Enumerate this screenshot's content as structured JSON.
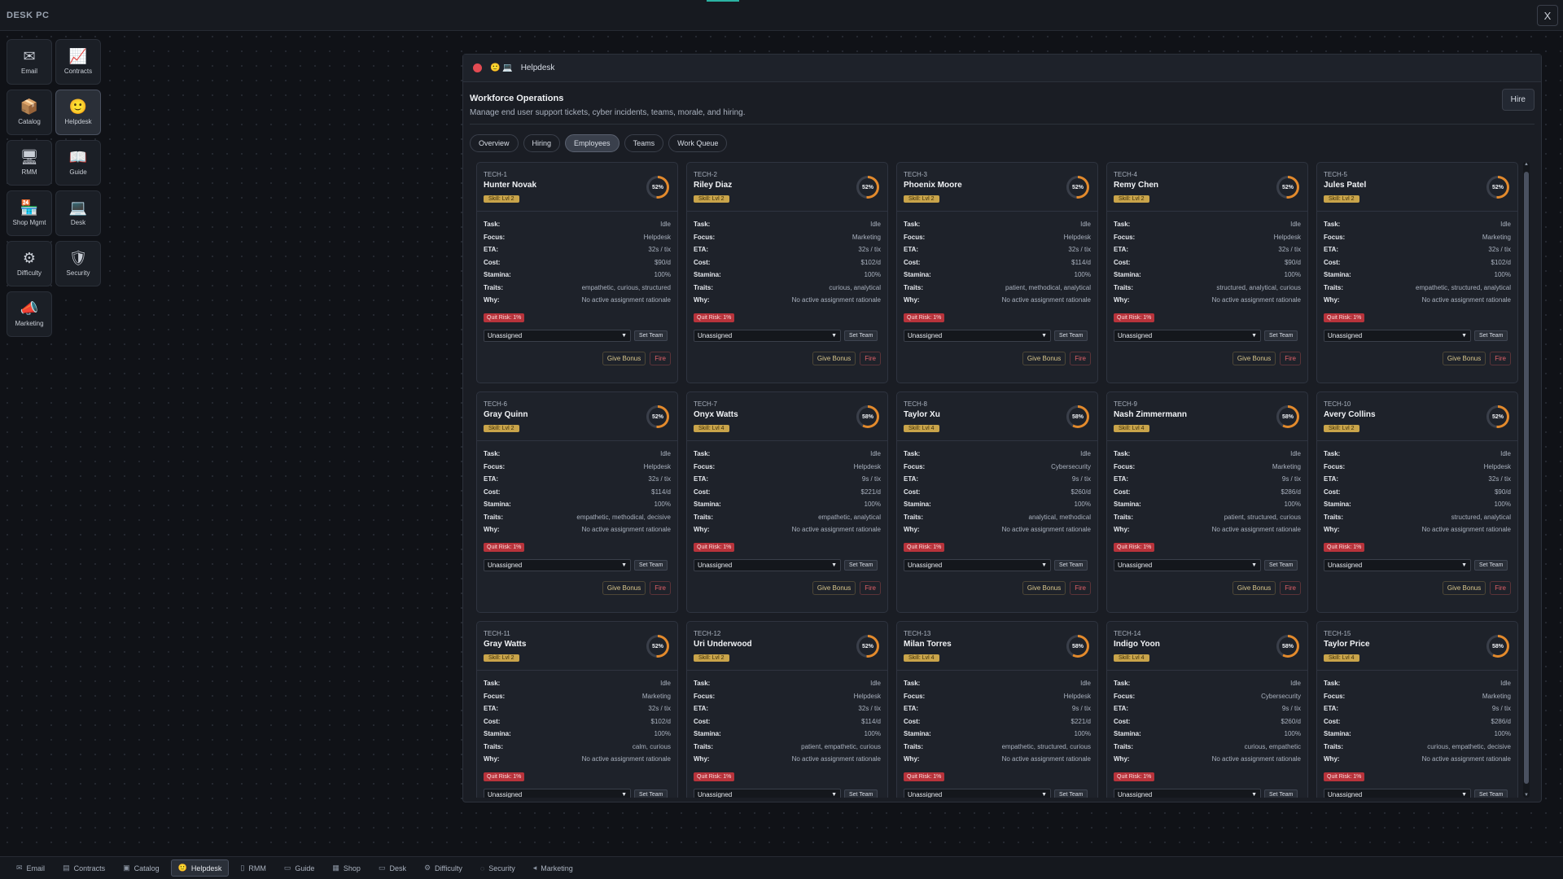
{
  "os": {
    "title": "DESK PC",
    "close_glyph": "X"
  },
  "desktop_icons": [
    {
      "label": "Email",
      "icon": "email-icon",
      "glyph": "✉",
      "active": false
    },
    {
      "label": "Contracts",
      "icon": "contracts-icon",
      "glyph": "📈",
      "active": false
    },
    {
      "label": "Catalog",
      "icon": "catalog-icon",
      "glyph": "📦",
      "active": false
    },
    {
      "label": "Helpdesk",
      "icon": "helpdesk-icon",
      "glyph": "🙂",
      "active": true
    },
    {
      "label": "RMM",
      "icon": "rmm-icon",
      "glyph": "🖥",
      "active": false
    },
    {
      "label": "Guide",
      "icon": "guide-icon",
      "glyph": "📖",
      "active": false
    },
    {
      "label": "Shop Mgmt",
      "icon": "shop-icon",
      "glyph": "🏪",
      "active": false
    },
    {
      "label": "Desk",
      "icon": "desk-icon",
      "glyph": "💻",
      "active": false
    },
    {
      "label": "Difficulty",
      "icon": "gear-icon",
      "glyph": "⚙",
      "active": false
    },
    {
      "label": "Security",
      "icon": "shield-icon",
      "glyph": "🛡",
      "active": false
    },
    {
      "label": "Marketing",
      "icon": "megaphone-icon",
      "glyph": "📣",
      "active": false
    }
  ],
  "window": {
    "title": "Helpdesk",
    "title_icons": "🙂 💻",
    "heading": "Workforce Operations",
    "subheading": "Manage end user support tickets, cyber incidents, teams, morale, and hiring.",
    "hire_label": "Hire",
    "tabs": [
      "Overview",
      "Hiring",
      "Employees",
      "Teams",
      "Work Queue"
    ],
    "active_tab": "Employees"
  },
  "labels": {
    "task": "Task:",
    "focus": "Focus:",
    "eta": "ETA:",
    "cost": "Cost:",
    "stamina": "Stamina:",
    "traits": "Traits:",
    "why": "Why:",
    "set_team": "Set Team",
    "give_bonus": "Give Bonus",
    "fire": "Fire",
    "unassigned": "Unassigned"
  },
  "employees": [
    {
      "id": "TECH-1",
      "name": "Hunter Novak",
      "skill": "Skill: Lvl 2",
      "morale": "52%",
      "task": "Idle",
      "focus": "Helpdesk",
      "eta": "32s / tix",
      "cost": "$90/d",
      "stamina": "100%",
      "traits": "empathetic, curious, structured",
      "why": "No active assignment rationale",
      "quit": "Quit Risk: 1%"
    },
    {
      "id": "TECH-2",
      "name": "Riley Diaz",
      "skill": "Skill: Lvl 2",
      "morale": "52%",
      "task": "Idle",
      "focus": "Marketing",
      "eta": "32s / tix",
      "cost": "$102/d",
      "stamina": "100%",
      "traits": "curious, analytical",
      "why": "No active assignment rationale",
      "quit": "Quit Risk: 1%"
    },
    {
      "id": "TECH-3",
      "name": "Phoenix Moore",
      "skill": "Skill: Lvl 2",
      "morale": "52%",
      "task": "Idle",
      "focus": "Helpdesk",
      "eta": "32s / tix",
      "cost": "$114/d",
      "stamina": "100%",
      "traits": "patient, methodical, analytical",
      "why": "No active assignment rationale",
      "quit": "Quit Risk: 1%"
    },
    {
      "id": "TECH-4",
      "name": "Remy Chen",
      "skill": "Skill: Lvl 2",
      "morale": "52%",
      "task": "Idle",
      "focus": "Helpdesk",
      "eta": "32s / tix",
      "cost": "$90/d",
      "stamina": "100%",
      "traits": "structured, analytical, curious",
      "why": "No active assignment rationale",
      "quit": "Quit Risk: 1%"
    },
    {
      "id": "TECH-5",
      "name": "Jules Patel",
      "skill": "Skill: Lvl 2",
      "morale": "52%",
      "task": "Idle",
      "focus": "Marketing",
      "eta": "32s / tix",
      "cost": "$102/d",
      "stamina": "100%",
      "traits": "empathetic, structured, analytical",
      "why": "No active assignment rationale",
      "quit": "Quit Risk: 1%"
    },
    {
      "id": "TECH-6",
      "name": "Gray Quinn",
      "skill": "Skill: Lvl 2",
      "morale": "52%",
      "task": "Idle",
      "focus": "Helpdesk",
      "eta": "32s / tix",
      "cost": "$114/d",
      "stamina": "100%",
      "traits": "empathetic, methodical, decisive",
      "why": "No active assignment rationale",
      "quit": "Quit Risk: 1%"
    },
    {
      "id": "TECH-7",
      "name": "Onyx Watts",
      "skill": "Skill: Lvl 4",
      "morale": "58%",
      "task": "Idle",
      "focus": "Helpdesk",
      "eta": "9s / tix",
      "cost": "$221/d",
      "stamina": "100%",
      "traits": "empathetic, analytical",
      "why": "No active assignment rationale",
      "quit": "Quit Risk: 1%"
    },
    {
      "id": "TECH-8",
      "name": "Taylor Xu",
      "skill": "Skill: Lvl 4",
      "morale": "58%",
      "task": "Idle",
      "focus": "Cybersecurity",
      "eta": "9s / tix",
      "cost": "$260/d",
      "stamina": "100%",
      "traits": "analytical, methodical",
      "why": "No active assignment rationale",
      "quit": "Quit Risk: 1%"
    },
    {
      "id": "TECH-9",
      "name": "Nash Zimmermann",
      "skill": "Skill: Lvl 4",
      "morale": "58%",
      "task": "Idle",
      "focus": "Marketing",
      "eta": "9s / tix",
      "cost": "$286/d",
      "stamina": "100%",
      "traits": "patient, structured, curious",
      "why": "No active assignment rationale",
      "quit": "Quit Risk: 1%"
    },
    {
      "id": "TECH-10",
      "name": "Avery Collins",
      "skill": "Skill: Lvl 2",
      "morale": "52%",
      "task": "Idle",
      "focus": "Helpdesk",
      "eta": "32s / tix",
      "cost": "$90/d",
      "stamina": "100%",
      "traits": "structured, analytical",
      "why": "No active assignment rationale",
      "quit": "Quit Risk: 1%"
    },
    {
      "id": "TECH-11",
      "name": "Gray Watts",
      "skill": "Skill: Lvl 2",
      "morale": "52%",
      "task": "Idle",
      "focus": "Marketing",
      "eta": "32s / tix",
      "cost": "$102/d",
      "stamina": "100%",
      "traits": "calm, curious",
      "why": "No active assignment rationale",
      "quit": "Quit Risk: 1%"
    },
    {
      "id": "TECH-12",
      "name": "Uri Underwood",
      "skill": "Skill: Lvl 2",
      "morale": "52%",
      "task": "Idle",
      "focus": "Helpdesk",
      "eta": "32s / tix",
      "cost": "$114/d",
      "stamina": "100%",
      "traits": "patient, empathetic, curious",
      "why": "No active assignment rationale",
      "quit": "Quit Risk: 1%"
    },
    {
      "id": "TECH-13",
      "name": "Milan Torres",
      "skill": "Skill: Lvl 4",
      "morale": "58%",
      "task": "Idle",
      "focus": "Helpdesk",
      "eta": "9s / tix",
      "cost": "$221/d",
      "stamina": "100%",
      "traits": "empathetic, structured, curious",
      "why": "No active assignment rationale",
      "quit": "Quit Risk: 1%"
    },
    {
      "id": "TECH-14",
      "name": "Indigo Yoon",
      "skill": "Skill: Lvl 4",
      "morale": "58%",
      "task": "Idle",
      "focus": "Cybersecurity",
      "eta": "9s / tix",
      "cost": "$260/d",
      "stamina": "100%",
      "traits": "curious, empathetic",
      "why": "No active assignment rationale",
      "quit": "Quit Risk: 1%"
    },
    {
      "id": "TECH-15",
      "name": "Taylor Price",
      "skill": "Skill: Lvl 4",
      "morale": "58%",
      "task": "Idle",
      "focus": "Marketing",
      "eta": "9s / tix",
      "cost": "$286/d",
      "stamina": "100%",
      "traits": "curious, empathetic, decisive",
      "why": "No active assignment rationale",
      "quit": "Quit Risk: 1%"
    }
  ],
  "taskbar": [
    {
      "label": "Email",
      "glyph": "✉",
      "icon": "email-icon",
      "active": false
    },
    {
      "label": "Contracts",
      "glyph": "▤",
      "icon": "contracts-icon",
      "active": false
    },
    {
      "label": "Catalog",
      "glyph": "▣",
      "icon": "catalog-icon",
      "active": false
    },
    {
      "label": "Helpdesk",
      "glyph": "🙂",
      "icon": "helpdesk-icon",
      "active": true
    },
    {
      "label": "RMM",
      "glyph": "▯",
      "icon": "rmm-icon",
      "active": false
    },
    {
      "label": "Guide",
      "glyph": "▭",
      "icon": "guide-icon",
      "active": false
    },
    {
      "label": "Shop",
      "glyph": "▦",
      "icon": "shop-icon",
      "active": false
    },
    {
      "label": "Desk",
      "glyph": "▭",
      "icon": "desk-icon",
      "active": false
    },
    {
      "label": "Difficulty",
      "glyph": "⚙",
      "icon": "gear-icon",
      "active": false
    },
    {
      "label": "Security",
      "glyph": "◌",
      "icon": "shield-icon",
      "active": false
    },
    {
      "label": "Marketing",
      "glyph": "◂",
      "icon": "megaphone-icon",
      "active": false
    }
  ]
}
